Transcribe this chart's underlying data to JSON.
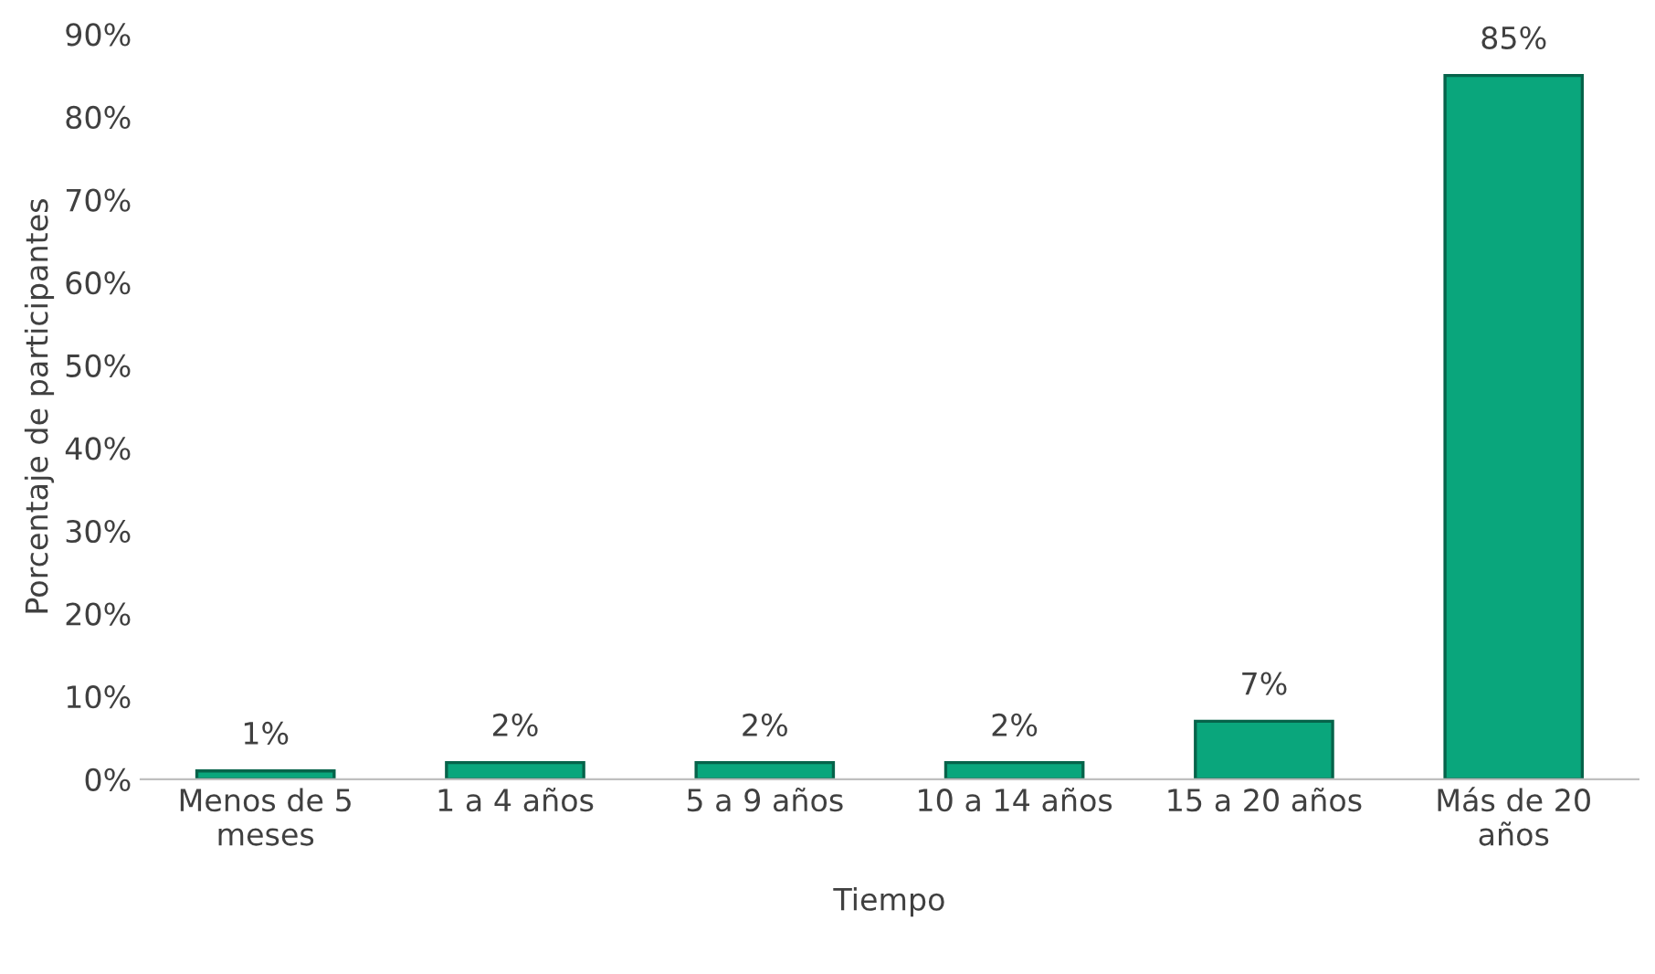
{
  "chart_data": {
    "type": "bar",
    "xlabel": "Tiempo",
    "ylabel": "Porcentaje de participantes",
    "categories": [
      "Menos de 5\nmeses",
      "1 a 4 años",
      "5 a 9 años",
      "10 a 14 años",
      "15 a 20 años",
      "Más de 20\naños"
    ],
    "values": [
      1,
      2,
      2,
      2,
      7,
      85
    ],
    "value_labels": [
      "1%",
      "2%",
      "2%",
      "2%",
      "7%",
      "85%"
    ],
    "color": "#0aa67c",
    "ylim": [
      0,
      90
    ],
    "yticks": [
      {
        "value": 0,
        "label": "0%"
      },
      {
        "value": 10,
        "label": "10%"
      },
      {
        "value": 20,
        "label": "20%"
      },
      {
        "value": 30,
        "label": "30%"
      },
      {
        "value": 40,
        "label": "40%"
      },
      {
        "value": 50,
        "label": "50%"
      },
      {
        "value": 60,
        "label": "60%"
      },
      {
        "value": 70,
        "label": "70%"
      },
      {
        "value": 80,
        "label": "80%"
      },
      {
        "value": 90,
        "label": "90%"
      }
    ],
    "grid": false,
    "legend": false
  }
}
